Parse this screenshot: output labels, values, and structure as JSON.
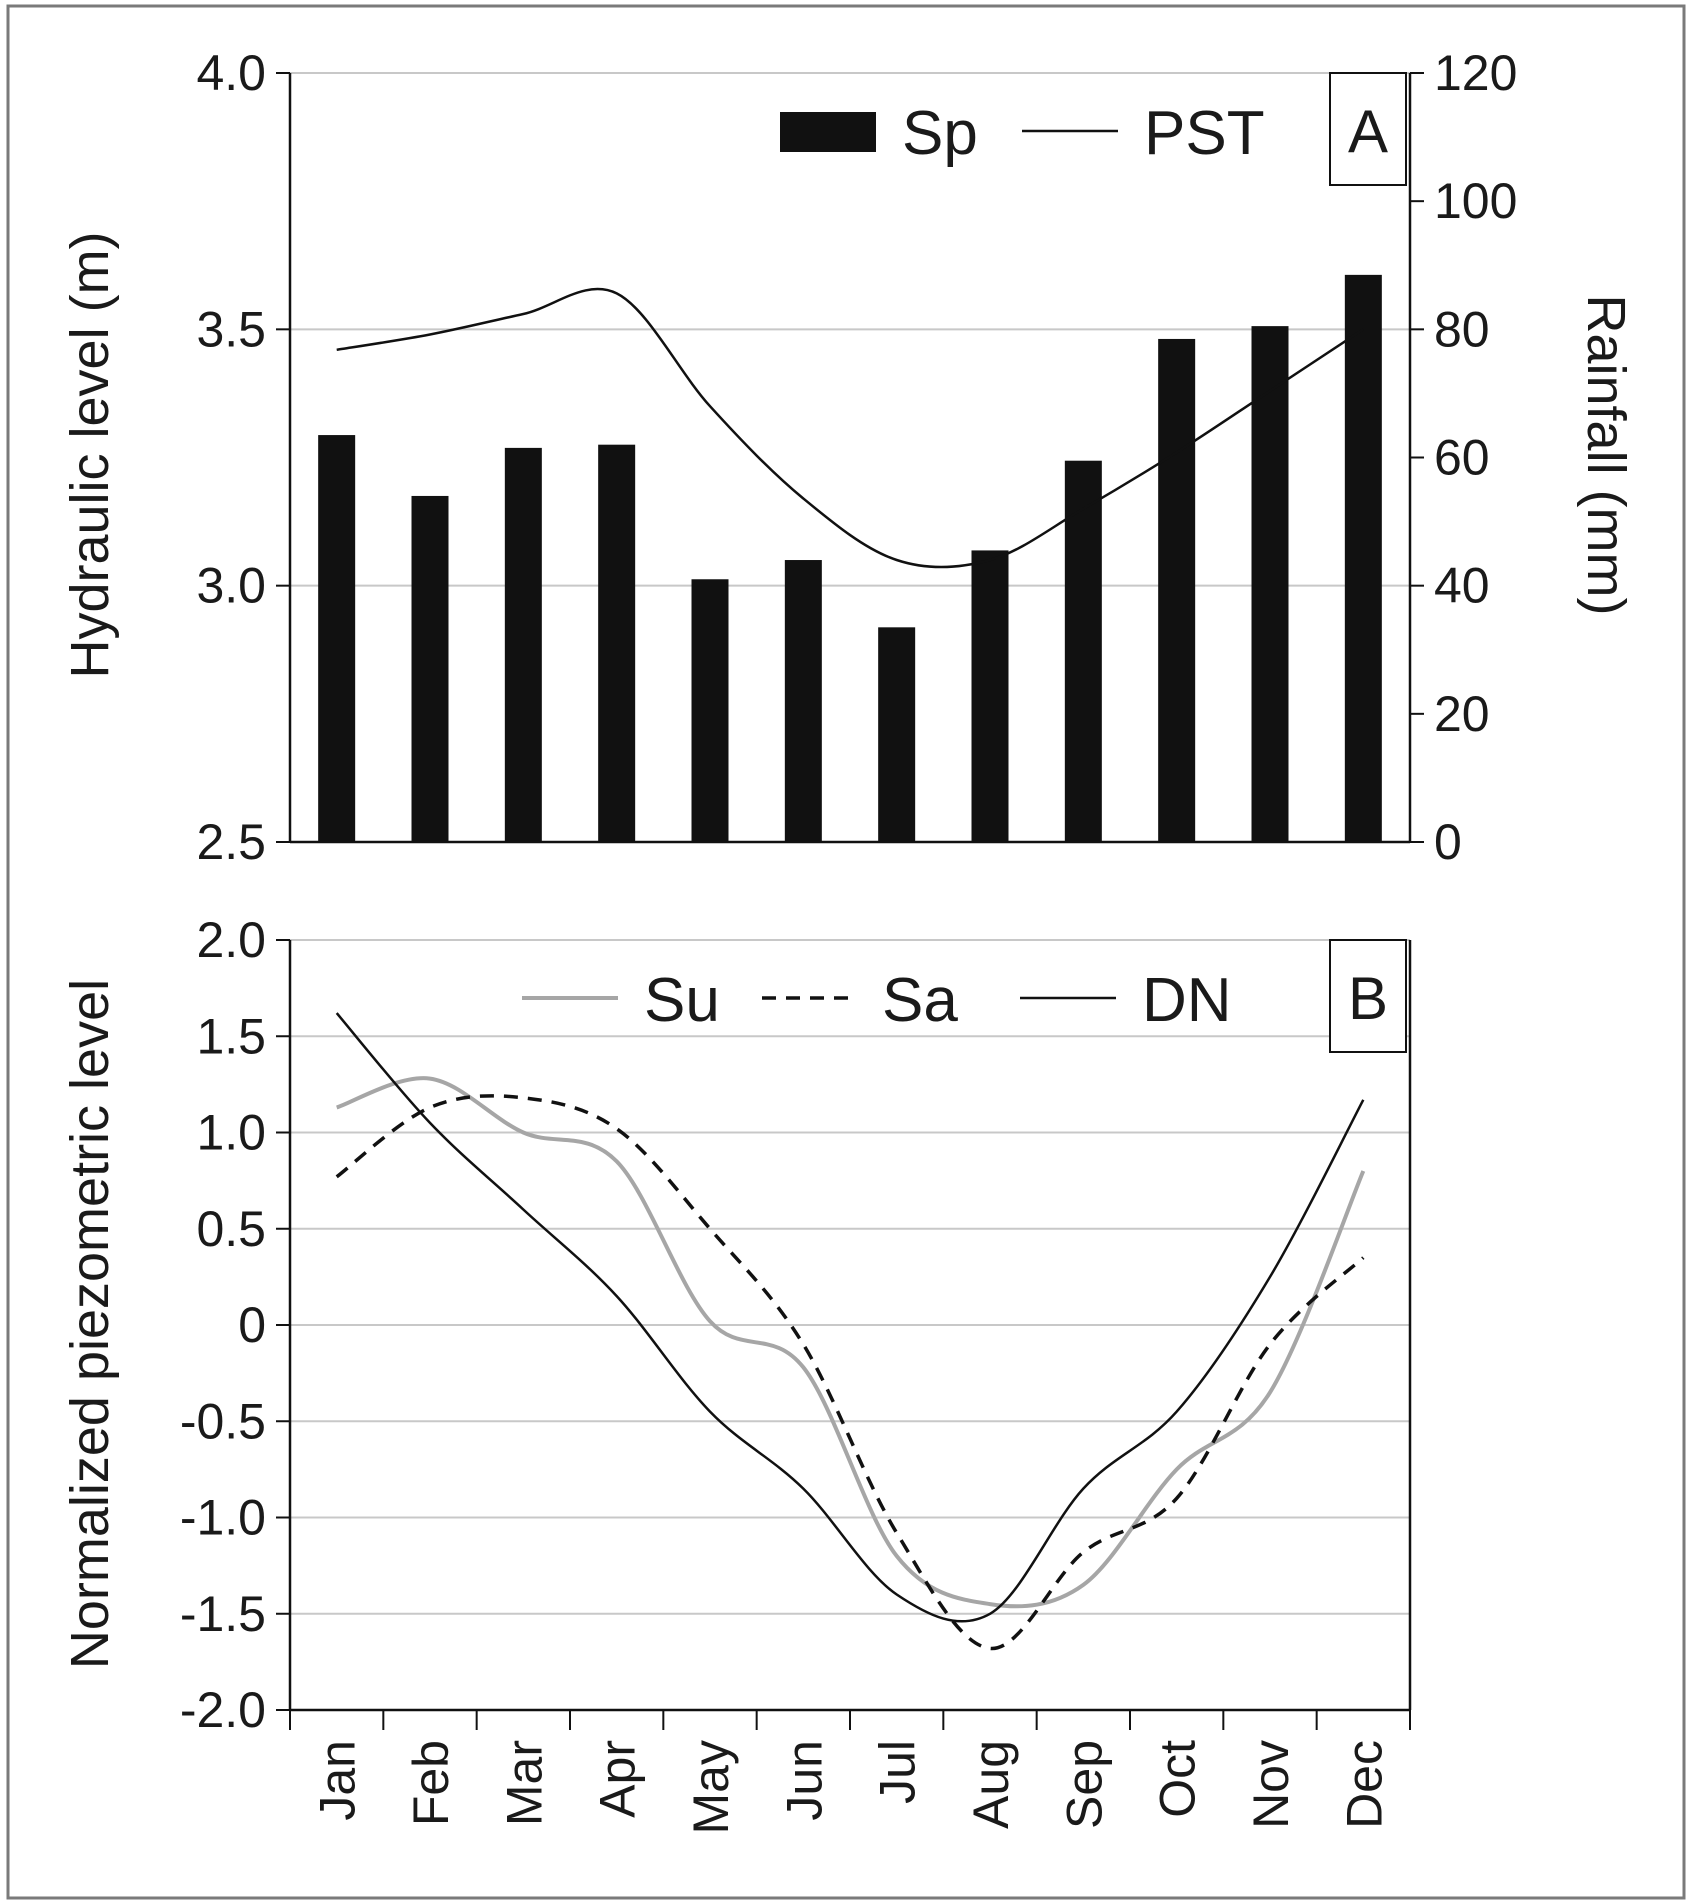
{
  "chart_data": [
    {
      "panel_label": "A",
      "type": "bar",
      "categories": [
        "Jan",
        "Feb",
        "Mar",
        "Apr",
        "May",
        "Jun",
        "Jul",
        "Aug",
        "Sep",
        "Oct",
        "Nov",
        "Dec"
      ],
      "ylabel": "Hydraulic level (m)",
      "y2label": "Rainfall (mm)",
      "ylim": [
        2.5,
        4.0
      ],
      "y2lim": [
        0,
        120
      ],
      "yticks": [
        "4.0",
        "3.5",
        "3.0",
        "2.5"
      ],
      "ytick_values": [
        4.0,
        3.5,
        3.0,
        2.5
      ],
      "y2ticks": [
        "120",
        "100",
        "80",
        "60",
        "40",
        "20",
        "0"
      ],
      "y2tick_values": [
        120,
        100,
        80,
        60,
        40,
        20,
        0
      ],
      "grid": true,
      "legend_position": "top-right",
      "series": [
        {
          "name": "Sp",
          "kind": "bar",
          "axis": "right",
          "color": "#111111",
          "values": [
            63.5,
            54,
            61.5,
            62,
            41,
            44,
            33.5,
            45.5,
            59.5,
            78.5,
            80.5,
            88.5
          ]
        },
        {
          "name": "PST",
          "kind": "line",
          "axis": "left",
          "color": "#111111",
          "values": [
            3.46,
            3.49,
            3.53,
            3.57,
            3.35,
            3.17,
            3.05,
            3.05,
            3.15,
            3.26,
            3.38,
            3.5
          ]
        }
      ]
    },
    {
      "panel_label": "B",
      "type": "line",
      "categories": [
        "Jan",
        "Feb",
        "Mar",
        "Apr",
        "May",
        "Jun",
        "Jul",
        "Aug",
        "Sep",
        "Oct",
        "Nov",
        "Dec"
      ],
      "ylabel": "Normalized piezometric level",
      "ylim": [
        -2.0,
        2.0
      ],
      "yticks": [
        "2.0",
        "1.5",
        "1.0",
        "0.5",
        "0",
        "-0.5",
        "-1.0",
        "-1.5",
        "-2.0"
      ],
      "ytick_values": [
        2.0,
        1.5,
        1.0,
        0.5,
        0,
        -0.5,
        -1.0,
        -1.5,
        -2.0
      ],
      "grid": true,
      "legend_position": "top-right",
      "series": [
        {
          "name": "Su",
          "style": "solid",
          "color": "#a6a6a6",
          "values": [
            1.13,
            1.28,
            1.0,
            0.85,
            0.02,
            -0.22,
            -1.2,
            -1.45,
            -1.35,
            -0.75,
            -0.35,
            0.8
          ]
        },
        {
          "name": "Sa",
          "style": "dashed",
          "color": "#111111",
          "values": [
            0.77,
            1.13,
            1.18,
            1.02,
            0.5,
            -0.1,
            -1.08,
            -1.68,
            -1.18,
            -0.9,
            -0.1,
            0.35
          ]
        },
        {
          "name": "DN",
          "style": "solid",
          "color": "#111111",
          "values": [
            1.62,
            1.05,
            0.6,
            0.15,
            -0.45,
            -0.85,
            -1.4,
            -1.5,
            -0.85,
            -0.45,
            0.25,
            1.17
          ]
        }
      ]
    }
  ]
}
